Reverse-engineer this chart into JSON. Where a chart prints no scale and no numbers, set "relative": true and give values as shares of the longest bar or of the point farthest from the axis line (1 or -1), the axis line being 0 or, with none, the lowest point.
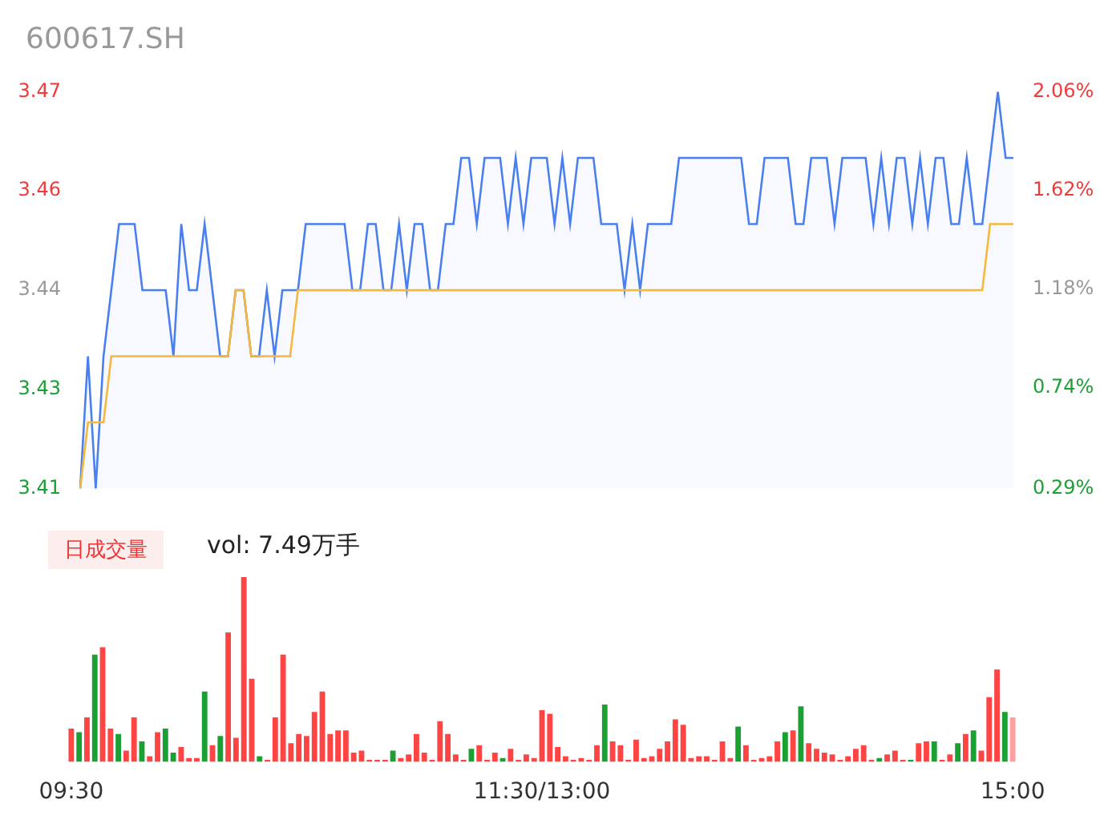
{
  "chart_data": [
    {
      "type": "line",
      "title": "600617.SH",
      "marker": "none",
      "tick_labels": "y",
      "categories": [
        null,
        null,
        null,
        null,
        null,
        null,
        null,
        null,
        null,
        null,
        null,
        null,
        null,
        null,
        null,
        null,
        null,
        null,
        null,
        null,
        null,
        null,
        null,
        null,
        null,
        null,
        null,
        null,
        null,
        null,
        null,
        null,
        null,
        null,
        null,
        null,
        null,
        null,
        null,
        null,
        null,
        null,
        null,
        null,
        null,
        null,
        null,
        null,
        null,
        null,
        null,
        null,
        null,
        null,
        null,
        null,
        null,
        null,
        null,
        null,
        null,
        null,
        null,
        null,
        null,
        null,
        null,
        null,
        null,
        null,
        null,
        null,
        null,
        null,
        null,
        null,
        null,
        null,
        null,
        null,
        null,
        null,
        null,
        null,
        null,
        null,
        null,
        null,
        null,
        null,
        null,
        null,
        null,
        null,
        null,
        null,
        null,
        null,
        null,
        null,
        null,
        null,
        null,
        null,
        null,
        null,
        null,
        null,
        null,
        null,
        null,
        null,
        null,
        null,
        null,
        null,
        null,
        null,
        null,
        null,
        null
      ],
      "ylim": [
        3.41,
        3.47
      ],
      "yticks": [
        3.41,
        {
          "value": 3.425,
          "label": "3.43"
        },
        3.44,
        {
          "value": 3.455,
          "label": "3.46"
        },
        3.47
      ],
      "y2lim": [
        0.29,
        2.06
      ],
      "y2ticks": [
        {
          "value": 0.29,
          "label": "0.29%"
        },
        {
          "value": 0.74,
          "label": "0.74%"
        },
        {
          "value": 1.18,
          "label": "1.18%"
        },
        {
          "value": 1.62,
          "label": "1.62%"
        },
        {
          "value": 2.06,
          "label": "2.06%"
        }
      ],
      "series": [
        {
          "type": "area",
          "color": "#4a7ff0",
          "values": [
            3.41,
            3.43,
            3.41,
            3.43,
            3.44,
            3.45,
            3.45,
            3.45,
            3.44,
            3.44,
            3.44,
            3.44,
            3.43,
            3.45,
            3.44,
            3.44,
            3.45,
            3.44,
            3.43,
            3.43,
            3.44,
            3.44,
            3.43,
            3.43,
            3.44,
            3.43,
            3.44,
            3.44,
            3.44,
            3.45,
            3.45,
            3.45,
            3.45,
            3.45,
            3.45,
            3.44,
            3.44,
            3.45,
            3.45,
            3.44,
            3.44,
            3.45,
            3.44,
            3.45,
            3.45,
            3.44,
            3.44,
            3.45,
            3.45,
            3.46,
            3.46,
            3.45,
            3.46,
            3.46,
            3.46,
            3.45,
            3.46,
            3.45,
            3.46,
            3.46,
            3.46,
            3.45,
            3.46,
            3.45,
            3.46,
            3.46,
            3.46,
            3.45,
            3.45,
            3.45,
            3.44,
            3.45,
            3.44,
            3.45,
            3.45,
            3.45,
            3.45,
            3.46,
            3.46,
            3.46,
            3.46,
            3.46,
            3.46,
            3.46,
            3.46,
            3.46,
            3.45,
            3.45,
            3.46,
            3.46,
            3.46,
            3.46,
            3.45,
            3.45,
            3.46,
            3.46,
            3.46,
            3.45,
            3.46,
            3.46,
            3.46,
            3.46,
            3.45,
            3.46,
            3.45,
            3.46,
            3.46,
            3.45,
            3.46,
            3.45,
            3.46,
            3.46,
            3.45,
            3.45,
            3.46,
            3.45,
            3.45,
            3.46,
            3.47,
            3.46,
            3.46
          ]
        },
        {
          "type": "line",
          "color": "#f5b83d",
          "values": [
            3.41,
            3.42,
            3.42,
            3.42,
            3.43,
            3.43,
            3.43,
            3.43,
            3.43,
            3.43,
            3.43,
            3.43,
            3.43,
            3.43,
            3.43,
            3.43,
            3.43,
            3.43,
            3.43,
            3.43,
            3.44,
            3.44,
            3.43,
            3.43,
            3.43,
            3.43,
            3.43,
            3.43,
            3.44,
            3.44,
            3.44,
            3.44,
            3.44,
            3.44,
            3.44,
            3.44,
            3.44,
            3.44,
            3.44,
            3.44,
            3.44,
            3.44,
            3.44,
            3.44,
            3.44,
            3.44,
            3.44,
            3.44,
            3.44,
            3.44,
            3.44,
            3.44,
            3.44,
            3.44,
            3.44,
            3.44,
            3.44,
            3.44,
            3.44,
            3.44,
            3.44,
            3.44,
            3.44,
            3.44,
            3.44,
            3.44,
            3.44,
            3.44,
            3.44,
            3.44,
            3.44,
            3.44,
            3.44,
            3.44,
            3.44,
            3.44,
            3.44,
            3.44,
            3.44,
            3.44,
            3.44,
            3.44,
            3.44,
            3.44,
            3.44,
            3.44,
            3.44,
            3.44,
            3.44,
            3.44,
            3.44,
            3.44,
            3.44,
            3.44,
            3.44,
            3.44,
            3.44,
            3.44,
            3.44,
            3.44,
            3.44,
            3.44,
            3.44,
            3.44,
            3.44,
            3.44,
            3.44,
            3.44,
            3.44,
            3.44,
            3.44,
            3.44,
            3.44,
            3.44,
            3.44,
            3.44,
            3.44,
            3.45,
            3.45,
            3.45,
            3.45
          ]
        }
      ]
    },
    {
      "type": "bar",
      "relative": true,
      "tick_labels": "x",
      "annotations": [
        "日成交量",
        "vol: 7.49万手"
      ],
      "categories": [
        "09:30",
        null,
        null,
        null,
        null,
        null,
        null,
        null,
        null,
        null,
        null,
        null,
        null,
        null,
        null,
        null,
        null,
        null,
        null,
        null,
        null,
        null,
        null,
        null,
        null,
        null,
        null,
        null,
        null,
        null,
        null,
        null,
        null,
        null,
        null,
        null,
        null,
        null,
        null,
        null,
        null,
        null,
        null,
        null,
        null,
        null,
        null,
        null,
        null,
        null,
        null,
        null,
        null,
        null,
        null,
        null,
        null,
        null,
        null,
        null,
        "11:30/13:00",
        null,
        null,
        null,
        null,
        null,
        null,
        null,
        null,
        null,
        null,
        null,
        null,
        null,
        null,
        null,
        null,
        null,
        null,
        null,
        null,
        null,
        null,
        null,
        null,
        null,
        null,
        null,
        null,
        null,
        null,
        null,
        null,
        null,
        null,
        null,
        null,
        null,
        null,
        null,
        null,
        null,
        null,
        null,
        null,
        null,
        null,
        null,
        null,
        null,
        null,
        null,
        null,
        null,
        null,
        null,
        null,
        null,
        null,
        null,
        "15:00"
      ],
      "values": [
        0.18,
        0.16,
        0.24,
        0.58,
        0.62,
        0.18,
        0.15,
        0.06,
        0.24,
        0.11,
        0.03,
        0.16,
        0.18,
        0.05,
        0.08,
        0.02,
        0.02,
        0.38,
        0.09,
        0.14,
        0.7,
        0.13,
        1,
        0.45,
        0.03,
        0.01,
        0.24,
        0.58,
        0.1,
        0.15,
        0.14,
        0.27,
        0.38,
        0.15,
        0.17,
        0.17,
        0.05,
        0.06,
        0.01,
        0.01,
        0.01,
        0.06,
        0.02,
        0.04,
        0.15,
        0.05,
        0.01,
        0.22,
        0.15,
        0.04,
        0.01,
        0.07,
        0.09,
        0.01,
        0.05,
        0.02,
        0.07,
        0.01,
        0.04,
        0.02,
        0.28,
        0.26,
        0.08,
        0.03,
        0.01,
        0.02,
        0.01,
        0.09,
        0.31,
        0.11,
        0.09,
        0.01,
        0.12,
        0.02,
        0.03,
        0.07,
        0.11,
        0.23,
        0.2,
        0.02,
        0.03,
        0.03,
        0.01,
        0.11,
        0.02,
        0.19,
        0.09,
        0.01,
        0.02,
        0.03,
        0.11,
        0.16,
        0.17,
        0.3,
        0.1,
        0.07,
        0.05,
        0.04,
        0.01,
        0.03,
        0.07,
        0.09,
        0.01,
        0.02,
        0.04,
        0.06,
        0.01,
        0.01,
        0.1,
        0.11,
        0.11,
        0.01,
        0.04,
        0.1,
        0.15,
        0.17,
        0.06,
        0.35,
        0.5,
        0.27,
        0.24
      ],
      "colors": [
        "#ff4444",
        "#1aa033",
        "#ff4444",
        "#1aa033",
        "#ff4444",
        "#ff4444",
        "#1aa033",
        "#ff4444",
        "#ff4444",
        "#1aa033",
        "#ff4444",
        "#ff4444",
        "#1aa033",
        "#1aa033",
        "#ff4444",
        "#ff4444",
        "#ff4444",
        "#1aa033",
        "#ff4444",
        "#1aa033",
        "#ff4444",
        "#ff4444",
        "#ff4444",
        "#ff4444",
        "#1aa033",
        "#ff4444",
        "#ff4444",
        "#ff4444",
        "#ff4444",
        "#ff4444",
        "#ff4444",
        "#ff4444",
        "#ff4444",
        "#ff4444",
        "#ff4444",
        "#ff4444",
        "#ff4444",
        "#ff4444",
        "#ff4444",
        "#ff4444",
        "#ff4444",
        "#1aa033",
        "#ff4444",
        "#ff4444",
        "#ff4444",
        "#ff4444",
        "#ff4444",
        "#ff4444",
        "#ff4444",
        "#ff4444",
        "#ff4444",
        "#1aa033",
        "#ff4444",
        "#ff4444",
        "#ff4444",
        "#1aa033",
        "#ff4444",
        "#ff4444",
        "#ff4444",
        "#ff4444",
        "#ff4444",
        "#ff4444",
        "#ff4444",
        "#ff4444",
        "#ff4444",
        "#ff4444",
        "#ff4444",
        "#ff4444",
        "#1aa033",
        "#ff4444",
        "#ff4444",
        "#ff4444",
        "#ff4444",
        "#ff4444",
        "#ff4444",
        "#ff4444",
        "#ff4444",
        "#ff4444",
        "#ff4444",
        "#ff4444",
        "#ff4444",
        "#ff4444",
        "#ff4444",
        "#ff4444",
        "#ff4444",
        "#1aa033",
        "#ff4444",
        "#ff4444",
        "#ff4444",
        "#ff4444",
        "#ff4444",
        "#1aa033",
        "#ff4444",
        "#1aa033",
        "#ff4444",
        "#ff4444",
        "#ff4444",
        "#ff4444",
        "#ff4444",
        "#ff4444",
        "#ff4444",
        "#ff4444",
        "#ff4444",
        "#1aa033",
        "#ff4444",
        "#ff4444",
        "#ff4444",
        "#1aa033",
        "#ff4444",
        "#ff4444",
        "#1aa033",
        "#ff4444",
        "#ff4444",
        "#1aa033",
        "#ff4444",
        "#1aa033",
        "#ff4444",
        "#ff4444",
        "#ff4444",
        "#1aa033",
        "#ffa0a0"
      ]
    }
  ]
}
